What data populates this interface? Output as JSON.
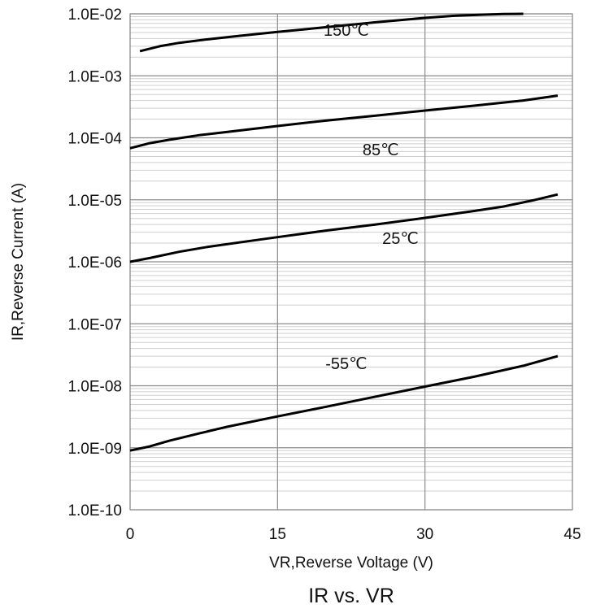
{
  "chart_data": {
    "type": "line",
    "title": "",
    "caption": "IR vs. VR",
    "xlabel": "VR,Reverse Voltage (V)",
    "ylabel": "IR,Reverse Current (A)",
    "xlim": [
      0,
      45
    ],
    "ylim": [
      1e-10,
      0.01
    ],
    "yscale": "log",
    "grid": true,
    "legend": "none",
    "x_ticks": [
      {
        "value": 0,
        "label": "0"
      },
      {
        "value": 15,
        "label": "15"
      },
      {
        "value": 30,
        "label": "30"
      },
      {
        "value": 45,
        "label": "45"
      }
    ],
    "y_ticks": [
      {
        "value": 1e-10,
        "label": "1.0E-10"
      },
      {
        "value": 1e-09,
        "label": "1.0E-09"
      },
      {
        "value": 1e-08,
        "label": "1.0E-08"
      },
      {
        "value": 1e-07,
        "label": "1.0E-07"
      },
      {
        "value": 1e-06,
        "label": "1.0E-06"
      },
      {
        "value": 1e-05,
        "label": "1.0E-05"
      },
      {
        "value": 0.0001,
        "label": "1.0E-04"
      },
      {
        "value": 0.001,
        "label": "1.0E-03"
      },
      {
        "value": 0.01,
        "label": "1.0E-02"
      }
    ],
    "series": [
      {
        "label": "150℃",
        "label_at": [
          22,
          0.0055
        ],
        "x": [
          1,
          3,
          5,
          8,
          11,
          15,
          20,
          25,
          30,
          33,
          36,
          38,
          40
        ],
        "y": [
          0.0025,
          0.003,
          0.0034,
          0.0039,
          0.0044,
          0.0051,
          0.0061,
          0.0073,
          0.0086,
          0.0093,
          0.0097,
          0.0099,
          0.01
        ]
      },
      {
        "label": "85℃",
        "label_at": [
          25.5,
          6.5e-05
        ],
        "x": [
          0,
          2,
          4,
          7,
          10,
          15,
          20,
          25,
          30,
          35,
          40,
          43.5
        ],
        "y": [
          6.8e-05,
          8.2e-05,
          9.3e-05,
          0.00011,
          0.000125,
          0.000155,
          0.00019,
          0.000228,
          0.000275,
          0.00033,
          0.0004,
          0.00048
        ]
      },
      {
        "label": "25℃",
        "label_at": [
          27.5,
          2.4e-06
        ],
        "x": [
          0,
          2,
          5,
          8,
          12,
          15,
          20,
          25,
          30,
          35,
          38,
          41,
          43.5
        ],
        "y": [
          1e-06,
          1.15e-06,
          1.45e-06,
          1.75e-06,
          2.15e-06,
          2.5e-06,
          3.2e-06,
          4e-06,
          5.1e-06,
          6.6e-06,
          7.8e-06,
          9.8e-06,
          1.22e-05
        ]
      },
      {
        "label": "-55℃",
        "label_at": [
          22,
          2.3e-08
        ],
        "x": [
          0,
          2,
          4,
          7,
          10,
          15,
          20,
          25,
          30,
          35,
          40,
          43.5
        ],
        "y": [
          9e-10,
          1.05e-09,
          1.3e-09,
          1.7e-09,
          2.2e-09,
          3.2e-09,
          4.6e-09,
          6.7e-09,
          9.7e-09,
          1.4e-08,
          2.1e-08,
          3e-08
        ]
      }
    ]
  }
}
